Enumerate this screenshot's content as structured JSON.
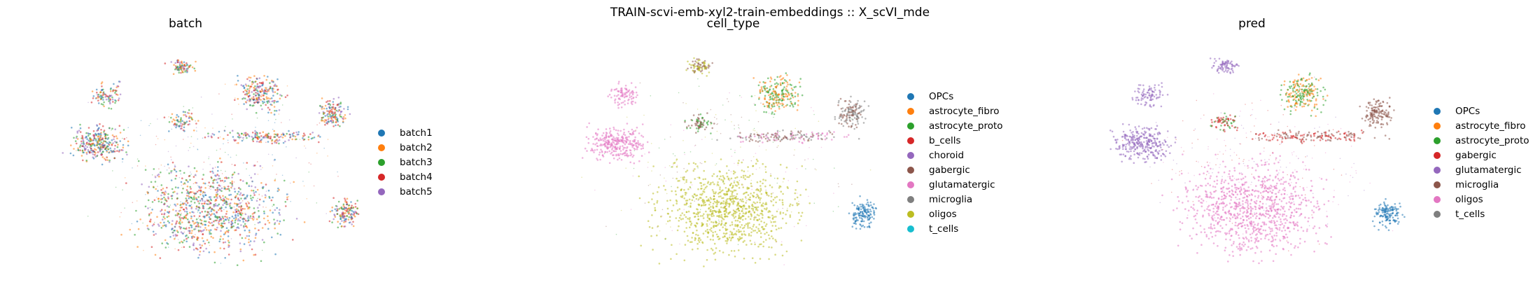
{
  "suptitle": "TRAIN-scvi-emb-xyl2-train-embeddings :: X_scVI_mde",
  "chart_data": [
    {
      "type": "scatter",
      "title": "batch",
      "legend_position": "right",
      "series": [
        {
          "name": "batch1",
          "color": "#1f77b4"
        },
        {
          "name": "batch2",
          "color": "#ff7f0e"
        },
        {
          "name": "batch3",
          "color": "#2ca02c"
        },
        {
          "name": "batch4",
          "color": "#d62728"
        },
        {
          "name": "batch5",
          "color": "#9467bd"
        }
      ]
    },
    {
      "type": "scatter",
      "title": "cell_type",
      "legend_position": "right",
      "series": [
        {
          "name": "OPCs",
          "color": "#1f77b4"
        },
        {
          "name": "astrocyte_fibro",
          "color": "#ff7f0e"
        },
        {
          "name": "astrocyte_proto",
          "color": "#2ca02c"
        },
        {
          "name": "b_cells",
          "color": "#d62728"
        },
        {
          "name": "choroid",
          "color": "#9467bd"
        },
        {
          "name": "gabergic",
          "color": "#8c564b"
        },
        {
          "name": "glutamatergic",
          "color": "#e377c2"
        },
        {
          "name": "microglia",
          "color": "#7f7f7f"
        },
        {
          "name": "oligos",
          "color": "#bcbd22"
        },
        {
          "name": "t_cells",
          "color": "#17becf"
        }
      ]
    },
    {
      "type": "scatter",
      "title": "pred",
      "legend_position": "right",
      "series": [
        {
          "name": "OPCs",
          "color": "#1f77b4"
        },
        {
          "name": "astrocyte_fibro",
          "color": "#ff7f0e"
        },
        {
          "name": "astrocyte_proto",
          "color": "#2ca02c"
        },
        {
          "name": "gabergic",
          "color": "#d62728"
        },
        {
          "name": "glutamatergic",
          "color": "#9467bd"
        },
        {
          "name": "microglia",
          "color": "#8c564b"
        },
        {
          "name": "oligos",
          "color": "#e377c2"
        },
        {
          "name": "t_cells",
          "color": "#7f7f7f"
        }
      ]
    }
  ]
}
